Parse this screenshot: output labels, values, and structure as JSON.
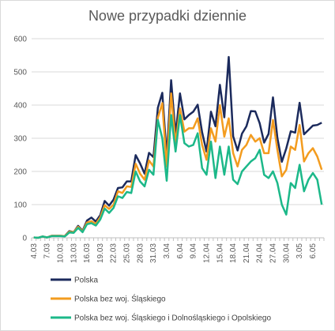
{
  "chart_data": {
    "type": "line",
    "title": "Nowe przypadki dziennie",
    "xlabel": "",
    "ylabel": "",
    "ylim": [
      0,
      600
    ],
    "yticks": [
      0,
      100,
      200,
      300,
      400,
      500,
      600
    ],
    "grid": true,
    "legend_placement": "bottom",
    "x": [
      "4.03",
      "5.03",
      "6.03",
      "7.03",
      "8.03",
      "9.03",
      "10.03",
      "11.03",
      "12.03",
      "13.03",
      "14.03",
      "15.03",
      "16.03",
      "17.03",
      "18.03",
      "19.03",
      "20.03",
      "21.03",
      "22.03",
      "23.03",
      "24.03",
      "25.03",
      "26.03",
      "27.03",
      "28.03",
      "29.03",
      "30.03",
      "31.03",
      "1.04",
      "2.04",
      "3.04",
      "4.04",
      "5.04",
      "6.04",
      "7.04",
      "8.04",
      "9.04",
      "10.04",
      "11.04",
      "12.04",
      "13.04",
      "14.04",
      "15.04",
      "16.04",
      "17.04",
      "18.04",
      "19.04",
      "20.04",
      "21.04",
      "22.04",
      "23.04",
      "24.04",
      "25.04",
      "26.04",
      "27.04",
      "28.04",
      "29.04",
      "30.04",
      "1.05",
      "2.05",
      "3.05",
      "4.05",
      "5.05",
      "6.05",
      "7.05",
      "8.05"
    ],
    "xtick_labels": [
      "4.03",
      "7.03",
      "10.03",
      "13.03",
      "16.03",
      "19.03",
      "22.03",
      "25.03",
      "28.03",
      "31.03",
      "3.04",
      "6.04",
      "9.04",
      "12.04",
      "15.04",
      "18.04",
      "21.04",
      "24.04",
      "27.04",
      "30.04",
      "3.05",
      "6.05"
    ],
    "series": [
      {
        "name": "Polska",
        "color": "#1b2a5c",
        "values": [
          1,
          0,
          4,
          1,
          6,
          6,
          6,
          5,
          20,
          17,
          36,
          21,
          52,
          61,
          49,
          68,
          111,
          97,
          115,
          150,
          152,
          170,
          170,
          249,
          224,
          193,
          256,
          243,
          392,
          437,
          244,
          475,
          311,
          435,
          357,
          370,
          380,
          401,
          318,
          260,
          380,
          336,
          461,
          363,
          545,
          306,
          263,
          314,
          336,
          382,
          381,
          345,
          287,
          313,
          423,
          301,
          229,
          269,
          321,
          317,
          407,
          312,
          325,
          338,
          340,
          347
        ]
      },
      {
        "name": "Polska bez woj. Śląskiego",
        "color": "#f39c1f",
        "values": [
          1,
          0,
          4,
          1,
          6,
          6,
          6,
          5,
          18,
          17,
          33,
          19,
          46,
          50,
          42,
          62,
          98,
          87,
          100,
          140,
          135,
          155,
          153,
          223,
          193,
          175,
          233,
          215,
          362,
          406,
          215,
          435,
          285,
          390,
          320,
          330,
          330,
          360,
          280,
          235,
          330,
          290,
          400,
          305,
          360,
          255,
          215,
          265,
          280,
          310,
          290,
          300,
          255,
          255,
          355,
          265,
          185,
          205,
          275,
          265,
          340,
          230,
          255,
          270,
          245,
          205
        ]
      },
      {
        "name": "Polska bez woj. Śląskiego i Dolnośląskiego i Opolskiego",
        "color": "#1cb889",
        "values": [
          1,
          0,
          4,
          1,
          5,
          5,
          5,
          4,
          16,
          15,
          30,
          17,
          41,
          44,
          37,
          55,
          88,
          75,
          90,
          125,
          120,
          138,
          135,
          200,
          170,
          155,
          205,
          190,
          355,
          300,
          172,
          370,
          260,
          370,
          285,
          275,
          280,
          315,
          210,
          190,
          290,
          180,
          275,
          190,
          275,
          175,
          162,
          200,
          215,
          230,
          240,
          265,
          190,
          180,
          200,
          165,
          100,
          70,
          165,
          150,
          220,
          140,
          175,
          195,
          175,
          100
        ]
      }
    ]
  }
}
